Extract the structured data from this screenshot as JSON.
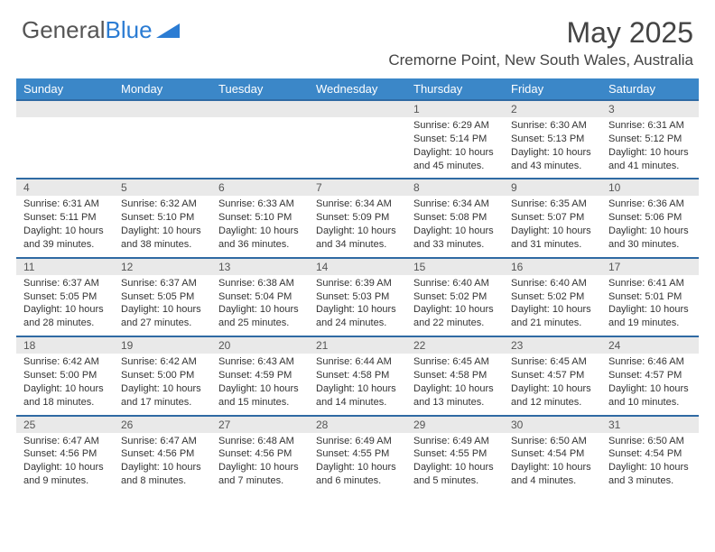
{
  "logo": {
    "text_general": "General",
    "text_blue": "Blue"
  },
  "title": "May 2025",
  "location": "Cremorne Point, New South Wales, Australia",
  "colors": {
    "header_bar": "#3b87c8",
    "day_bar_bg": "#e9e9e9",
    "day_bar_border": "#2f6aa3",
    "logo_blue": "#2b7cd3",
    "text": "#333333"
  },
  "weekdays": [
    "Sunday",
    "Monday",
    "Tuesday",
    "Wednesday",
    "Thursday",
    "Friday",
    "Saturday"
  ],
  "weeks": [
    {
      "nums": [
        "",
        "",
        "",
        "",
        "1",
        "2",
        "3"
      ],
      "cells": [
        null,
        null,
        null,
        null,
        {
          "sunrise": "6:29 AM",
          "sunset": "5:14 PM",
          "daylight": "10 hours and 45 minutes."
        },
        {
          "sunrise": "6:30 AM",
          "sunset": "5:13 PM",
          "daylight": "10 hours and 43 minutes."
        },
        {
          "sunrise": "6:31 AM",
          "sunset": "5:12 PM",
          "daylight": "10 hours and 41 minutes."
        }
      ]
    },
    {
      "nums": [
        "4",
        "5",
        "6",
        "7",
        "8",
        "9",
        "10"
      ],
      "cells": [
        {
          "sunrise": "6:31 AM",
          "sunset": "5:11 PM",
          "daylight": "10 hours and 39 minutes."
        },
        {
          "sunrise": "6:32 AM",
          "sunset": "5:10 PM",
          "daylight": "10 hours and 38 minutes."
        },
        {
          "sunrise": "6:33 AM",
          "sunset": "5:10 PM",
          "daylight": "10 hours and 36 minutes."
        },
        {
          "sunrise": "6:34 AM",
          "sunset": "5:09 PM",
          "daylight": "10 hours and 34 minutes."
        },
        {
          "sunrise": "6:34 AM",
          "sunset": "5:08 PM",
          "daylight": "10 hours and 33 minutes."
        },
        {
          "sunrise": "6:35 AM",
          "sunset": "5:07 PM",
          "daylight": "10 hours and 31 minutes."
        },
        {
          "sunrise": "6:36 AM",
          "sunset": "5:06 PM",
          "daylight": "10 hours and 30 minutes."
        }
      ]
    },
    {
      "nums": [
        "11",
        "12",
        "13",
        "14",
        "15",
        "16",
        "17"
      ],
      "cells": [
        {
          "sunrise": "6:37 AM",
          "sunset": "5:05 PM",
          "daylight": "10 hours and 28 minutes."
        },
        {
          "sunrise": "6:37 AM",
          "sunset": "5:05 PM",
          "daylight": "10 hours and 27 minutes."
        },
        {
          "sunrise": "6:38 AM",
          "sunset": "5:04 PM",
          "daylight": "10 hours and 25 minutes."
        },
        {
          "sunrise": "6:39 AM",
          "sunset": "5:03 PM",
          "daylight": "10 hours and 24 minutes."
        },
        {
          "sunrise": "6:40 AM",
          "sunset": "5:02 PM",
          "daylight": "10 hours and 22 minutes."
        },
        {
          "sunrise": "6:40 AM",
          "sunset": "5:02 PM",
          "daylight": "10 hours and 21 minutes."
        },
        {
          "sunrise": "6:41 AM",
          "sunset": "5:01 PM",
          "daylight": "10 hours and 19 minutes."
        }
      ]
    },
    {
      "nums": [
        "18",
        "19",
        "20",
        "21",
        "22",
        "23",
        "24"
      ],
      "cells": [
        {
          "sunrise": "6:42 AM",
          "sunset": "5:00 PM",
          "daylight": "10 hours and 18 minutes."
        },
        {
          "sunrise": "6:42 AM",
          "sunset": "5:00 PM",
          "daylight": "10 hours and 17 minutes."
        },
        {
          "sunrise": "6:43 AM",
          "sunset": "4:59 PM",
          "daylight": "10 hours and 15 minutes."
        },
        {
          "sunrise": "6:44 AM",
          "sunset": "4:58 PM",
          "daylight": "10 hours and 14 minutes."
        },
        {
          "sunrise": "6:45 AM",
          "sunset": "4:58 PM",
          "daylight": "10 hours and 13 minutes."
        },
        {
          "sunrise": "6:45 AM",
          "sunset": "4:57 PM",
          "daylight": "10 hours and 12 minutes."
        },
        {
          "sunrise": "6:46 AM",
          "sunset": "4:57 PM",
          "daylight": "10 hours and 10 minutes."
        }
      ]
    },
    {
      "nums": [
        "25",
        "26",
        "27",
        "28",
        "29",
        "30",
        "31"
      ],
      "cells": [
        {
          "sunrise": "6:47 AM",
          "sunset": "4:56 PM",
          "daylight": "10 hours and 9 minutes."
        },
        {
          "sunrise": "6:47 AM",
          "sunset": "4:56 PM",
          "daylight": "10 hours and 8 minutes."
        },
        {
          "sunrise": "6:48 AM",
          "sunset": "4:56 PM",
          "daylight": "10 hours and 7 minutes."
        },
        {
          "sunrise": "6:49 AM",
          "sunset": "4:55 PM",
          "daylight": "10 hours and 6 minutes."
        },
        {
          "sunrise": "6:49 AM",
          "sunset": "4:55 PM",
          "daylight": "10 hours and 5 minutes."
        },
        {
          "sunrise": "6:50 AM",
          "sunset": "4:54 PM",
          "daylight": "10 hours and 4 minutes."
        },
        {
          "sunrise": "6:50 AM",
          "sunset": "4:54 PM",
          "daylight": "10 hours and 3 minutes."
        }
      ]
    }
  ],
  "labels": {
    "sunrise": "Sunrise: ",
    "sunset": "Sunset: ",
    "daylight": "Daylight: "
  }
}
